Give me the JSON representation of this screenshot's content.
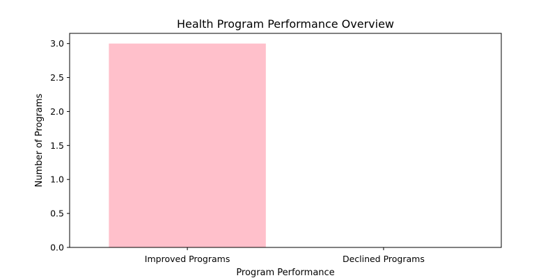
{
  "chart_data": {
    "type": "bar",
    "title": "Health Program Performance Overview",
    "xlabel": "Program Performance",
    "ylabel": "Number of Programs",
    "categories": [
      "Improved Programs",
      "Declined Programs"
    ],
    "values": [
      3,
      0
    ],
    "ylim": [
      0,
      3.15
    ],
    "yticks": [
      "0.0",
      "0.5",
      "1.0",
      "1.5",
      "2.0",
      "2.5",
      "3.0"
    ],
    "bar_color": "#ffc0cb",
    "grid": false,
    "legend": "none"
  }
}
